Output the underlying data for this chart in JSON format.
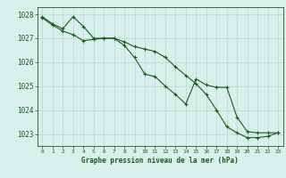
{
  "x": [
    0,
    1,
    2,
    3,
    4,
    5,
    6,
    7,
    8,
    9,
    10,
    11,
    12,
    13,
    14,
    15,
    16,
    17,
    18,
    19,
    20,
    21,
    22,
    23
  ],
  "line1": [
    1027.9,
    1027.6,
    1027.4,
    1027.9,
    1027.5,
    1027.0,
    1027.0,
    1027.0,
    1026.85,
    1026.65,
    1026.55,
    1026.45,
    1026.2,
    1025.8,
    1025.45,
    1025.1,
    1024.65,
    1024.0,
    1023.3,
    1023.05,
    1022.85,
    1022.85,
    1022.9,
    1023.05
  ],
  "line2": [
    1027.85,
    1027.55,
    1027.3,
    1027.15,
    1026.9,
    1026.95,
    1027.0,
    1027.0,
    1026.7,
    1026.2,
    1025.5,
    1025.4,
    1025.0,
    1024.65,
    1024.25,
    1025.3,
    1025.05,
    1024.95,
    1024.95,
    1023.7,
    1023.1,
    1023.05,
    1023.05,
    1023.05
  ],
  "ylim": [
    1022.5,
    1028.3
  ],
  "yticks": [
    1023,
    1024,
    1025,
    1026,
    1027,
    1028
  ],
  "line_color": "#1a5c1a",
  "bg_color": "#d8f0ec",
  "grid_color": "#b8d8d0",
  "xlabel": "Graphe pression niveau de la mer (hPa)",
  "xlabel_color": "#1a5c1a",
  "tick_color": "#1a5c1a",
  "marker": "+",
  "marker_size": 3,
  "linewidth": 0.8
}
